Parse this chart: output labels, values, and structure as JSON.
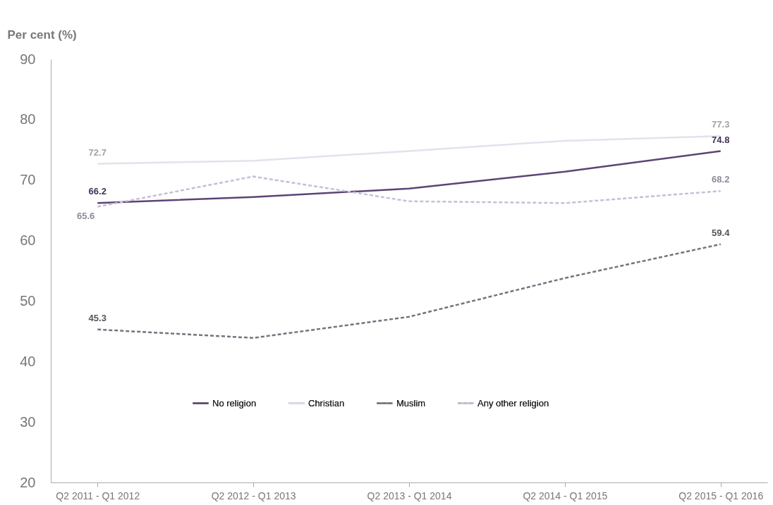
{
  "chart_data": {
    "type": "line",
    "ylabel": "Per cent (%)",
    "categories": [
      "Q2 2011 - Q1 2012",
      "Q2 2012 - Q1 2013",
      "Q2 2013 - Q1 2014",
      "Q2 2014 - Q1 2015",
      "Q2 2015 - Q1 2016"
    ],
    "series": [
      {
        "name": "No religion",
        "color": "#5c4474",
        "line_style": "solid",
        "values": [
          66.2,
          67.2,
          68.6,
          71.4,
          74.8
        ],
        "value_labels": [
          "66.2",
          null,
          null,
          null,
          "74.8"
        ]
      },
      {
        "name": "Christian",
        "color": "#e4e1ec",
        "line_style": "solid",
        "values": [
          72.7,
          73.2,
          74.8,
          76.5,
          77.3
        ],
        "value_labels": [
          "72.7",
          null,
          null,
          null,
          "77.3"
        ]
      },
      {
        "name": "Muslim",
        "color": "#77727f",
        "line_style": "dashed",
        "values": [
          45.3,
          43.9,
          47.4,
          53.8,
          59.4
        ],
        "value_labels": [
          "45.3",
          null,
          null,
          null,
          "59.4"
        ]
      },
      {
        "name": "Any other religion",
        "color": "#c6bfd6",
        "line_style": "dashed",
        "values": [
          65.6,
          70.6,
          66.5,
          66.2,
          68.2
        ],
        "value_labels": [
          "65.6",
          null,
          null,
          null,
          "68.2"
        ]
      }
    ],
    "ylim": [
      20,
      90
    ],
    "yticks": [
      20,
      30,
      40,
      50,
      60,
      70,
      80,
      90
    ],
    "grid": false,
    "legend": "bottom",
    "marker": "none"
  }
}
